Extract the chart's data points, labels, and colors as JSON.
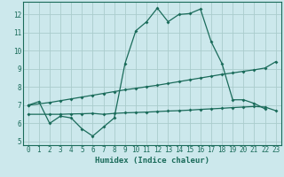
{
  "xlabel": "Humidex (Indice chaleur)",
  "xlim": [
    -0.5,
    23.5
  ],
  "ylim": [
    4.8,
    12.7
  ],
  "yticks": [
    5,
    6,
    7,
    8,
    9,
    10,
    11,
    12
  ],
  "xticks": [
    0,
    1,
    2,
    3,
    4,
    5,
    6,
    7,
    8,
    9,
    10,
    11,
    12,
    13,
    14,
    15,
    16,
    17,
    18,
    19,
    20,
    21,
    22,
    23
  ],
  "bg_color": "#cce8ec",
  "grid_color": "#aacccc",
  "line_color": "#1a6b5a",
  "line1_x": [
    0,
    1,
    2,
    3,
    4,
    5,
    6,
    7,
    8,
    9,
    10,
    11,
    12,
    13,
    14,
    15,
    16,
    17,
    18,
    19,
    20,
    21,
    22
  ],
  "line1_y": [
    7.0,
    7.2,
    6.0,
    6.4,
    6.3,
    5.7,
    5.3,
    5.8,
    6.3,
    9.3,
    11.1,
    11.6,
    12.35,
    11.6,
    12.0,
    12.05,
    12.3,
    10.5,
    9.3,
    7.3,
    7.3,
    7.1,
    6.8
  ],
  "line2_x": [
    0,
    2,
    3,
    4,
    5,
    6,
    7,
    8,
    9,
    10,
    11,
    12,
    13,
    14,
    15,
    16,
    17,
    18,
    19,
    20,
    21,
    22,
    23
  ],
  "line2_y": [
    7.0,
    7.15,
    7.25,
    7.35,
    7.45,
    7.55,
    7.65,
    7.75,
    7.85,
    7.93,
    8.02,
    8.1,
    8.2,
    8.3,
    8.4,
    8.5,
    8.6,
    8.7,
    8.78,
    8.87,
    8.95,
    9.05,
    9.4
  ],
  "line3_x": [
    0,
    2,
    3,
    4,
    5,
    6,
    7,
    8,
    9,
    10,
    11,
    12,
    13,
    14,
    15,
    16,
    17,
    18,
    19,
    20,
    21,
    22,
    23
  ],
  "line3_y": [
    6.5,
    6.5,
    6.5,
    6.52,
    6.53,
    6.55,
    6.5,
    6.55,
    6.58,
    6.6,
    6.62,
    6.65,
    6.68,
    6.7,
    6.73,
    6.77,
    6.8,
    6.83,
    6.87,
    6.9,
    6.93,
    6.9,
    6.7
  ]
}
